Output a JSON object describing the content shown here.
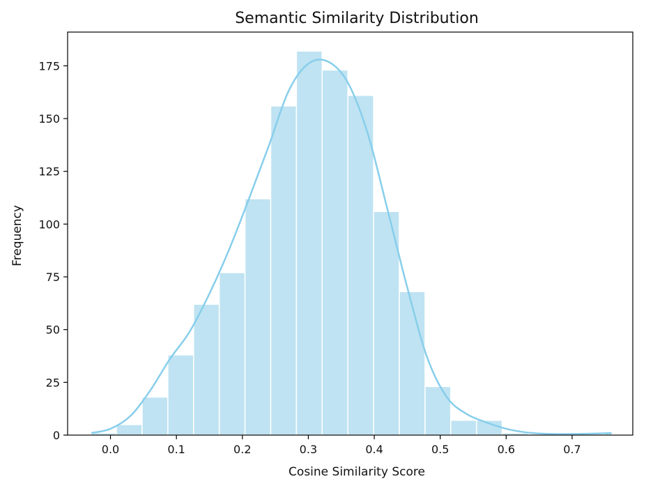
{
  "chart_data": {
    "type": "bar",
    "title": "Semantic Similarity Distribution",
    "xlabel": "Cosine Similarity Score",
    "ylabel": "Frequency",
    "xlim": [
      -0.065,
      0.792
    ],
    "ylim": [
      0,
      191
    ],
    "xticks": [
      0.0,
      0.1,
      0.2,
      0.3,
      0.4,
      0.5,
      0.6,
      0.7
    ],
    "xtick_labels": [
      "0.0",
      "0.1",
      "0.2",
      "0.3",
      "0.4",
      "0.5",
      "0.6",
      "0.7"
    ],
    "yticks": [
      0,
      25,
      50,
      75,
      100,
      125,
      150,
      175
    ],
    "ytick_labels": [
      "0",
      "25",
      "50",
      "75",
      "100",
      "125",
      "150",
      "175"
    ],
    "bins": [
      {
        "start": -0.029,
        "end": 0.009,
        "count": 1
      },
      {
        "start": 0.009,
        "end": 0.048,
        "count": 5
      },
      {
        "start": 0.048,
        "end": 0.087,
        "count": 18
      },
      {
        "start": 0.087,
        "end": 0.126,
        "count": 38
      },
      {
        "start": 0.126,
        "end": 0.165,
        "count": 62
      },
      {
        "start": 0.165,
        "end": 0.204,
        "count": 77
      },
      {
        "start": 0.204,
        "end": 0.243,
        "count": 112
      },
      {
        "start": 0.243,
        "end": 0.282,
        "count": 156
      },
      {
        "start": 0.282,
        "end": 0.321,
        "count": 182
      },
      {
        "start": 0.321,
        "end": 0.36,
        "count": 173
      },
      {
        "start": 0.36,
        "end": 0.399,
        "count": 161
      },
      {
        "start": 0.399,
        "end": 0.438,
        "count": 106
      },
      {
        "start": 0.438,
        "end": 0.477,
        "count": 68
      },
      {
        "start": 0.477,
        "end": 0.516,
        "count": 23
      },
      {
        "start": 0.516,
        "end": 0.555,
        "count": 7
      },
      {
        "start": 0.555,
        "end": 0.594,
        "count": 7
      },
      {
        "start": 0.594,
        "end": 0.633,
        "count": 1
      },
      {
        "start": 0.633,
        "end": 0.672,
        "count": 0
      },
      {
        "start": 0.672,
        "end": 0.711,
        "count": 0
      },
      {
        "start": 0.711,
        "end": 0.75,
        "count": 0
      },
      {
        "start": 0.75,
        "end": 0.76,
        "count": 1
      }
    ],
    "kde": {
      "x": [
        -0.029,
        0.0,
        0.03,
        0.06,
        0.09,
        0.12,
        0.15,
        0.18,
        0.21,
        0.24,
        0.27,
        0.3,
        0.33,
        0.36,
        0.39,
        0.42,
        0.45,
        0.48,
        0.51,
        0.54,
        0.57,
        0.6,
        0.63,
        0.66,
        0.69,
        0.72,
        0.76
      ],
      "y": [
        1,
        3,
        9,
        21,
        36,
        49,
        67,
        88,
        112,
        137,
        163,
        176,
        177,
        167,
        143,
        107,
        70,
        37,
        18,
        10,
        6,
        3,
        1.3,
        0.6,
        0.5,
        0.6,
        1
      ]
    },
    "grid": false,
    "legend": null,
    "colors": {
      "bar_fill": "#bfe3f2",
      "bar_edge": "#ffffff",
      "kde_line": "#87ceeb"
    }
  }
}
